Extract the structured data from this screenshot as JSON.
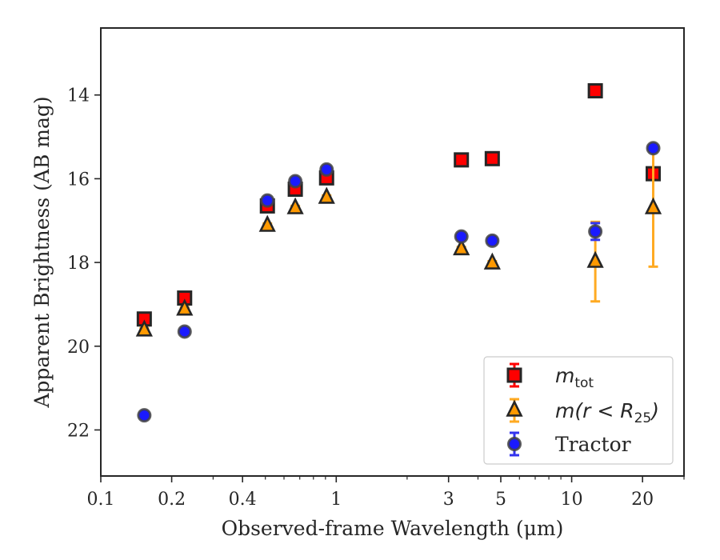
{
  "chart_data": {
    "type": "scatter",
    "title": "",
    "xlabel": "Observed-frame Wavelength (μm)",
    "ylabel": "Apparent Brightness (AB mag)",
    "x_scale": "log",
    "xlim": [
      0.1,
      30
    ],
    "ylim": [
      23.1,
      12.4
    ],
    "y_inverted": true,
    "x_ticks": [
      {
        "value": 0.1,
        "label": "0.1"
      },
      {
        "value": 0.2,
        "label": "0.2"
      },
      {
        "value": 0.4,
        "label": "0.4"
      },
      {
        "value": 1,
        "label": "1"
      },
      {
        "value": 3,
        "label": "3"
      },
      {
        "value": 5,
        "label": "5"
      },
      {
        "value": 10,
        "label": "10"
      },
      {
        "value": 20,
        "label": "20"
      }
    ],
    "y_ticks": [
      {
        "value": 14,
        "label": "14"
      },
      {
        "value": 16,
        "label": "16"
      },
      {
        "value": 18,
        "label": "18"
      },
      {
        "value": 20,
        "label": "20"
      },
      {
        "value": 22,
        "label": "22"
      }
    ],
    "legend_position": "lower-right",
    "series": [
      {
        "legend_label": "m_tot",
        "marker": "square",
        "color": "#ff0000",
        "errorbar_color": "#ff0000",
        "points": [
          {
            "x": 0.153,
            "y": 19.35,
            "err": 0.05
          },
          {
            "x": 0.227,
            "y": 18.85,
            "err": 0.05
          },
          {
            "x": 0.51,
            "y": 16.65,
            "err": 0.05
          },
          {
            "x": 0.67,
            "y": 16.25,
            "err": 0.05
          },
          {
            "x": 0.91,
            "y": 15.98,
            "err": 0.05
          },
          {
            "x": 3.4,
            "y": 15.55,
            "err": 0.05
          },
          {
            "x": 4.6,
            "y": 15.52,
            "err": 0.05
          },
          {
            "x": 12.6,
            "y": 13.9,
            "err": 0.05
          },
          {
            "x": 22.2,
            "y": 15.88,
            "err": 0.05
          }
        ]
      },
      {
        "legend_label": "m(r < R_25)",
        "marker": "triangle",
        "color": "#ff9900",
        "errorbar_color": "#ffaa22",
        "points": [
          {
            "x": 0.153,
            "y": 19.62,
            "err": 0.05
          },
          {
            "x": 0.227,
            "y": 19.12,
            "err": 0.05
          },
          {
            "x": 0.51,
            "y": 17.12,
            "err": 0.05
          },
          {
            "x": 0.67,
            "y": 16.7,
            "err": 0.05
          },
          {
            "x": 0.91,
            "y": 16.45,
            "err": 0.05
          },
          {
            "x": 3.4,
            "y": 17.68,
            "err": 0.05
          },
          {
            "x": 4.6,
            "y": 18.02,
            "err": 0.05
          },
          {
            "x": 12.6,
            "y": 17.98,
            "err": 0.95
          },
          {
            "x": 22.2,
            "y": 16.7,
            "err": 1.4
          }
        ]
      },
      {
        "legend_label": "Tractor",
        "marker": "circle",
        "color": "#1a1aff",
        "errorbar_color": "#3333ee",
        "points": [
          {
            "x": 0.153,
            "y": 21.65,
            "err": 0.05
          },
          {
            "x": 0.227,
            "y": 19.65,
            "err": 0.05
          },
          {
            "x": 0.51,
            "y": 16.52,
            "err": 0.05
          },
          {
            "x": 0.67,
            "y": 16.06,
            "err": 0.05
          },
          {
            "x": 0.91,
            "y": 15.78,
            "err": 0.05
          },
          {
            "x": 3.4,
            "y": 17.38,
            "err": 0.05
          },
          {
            "x": 4.6,
            "y": 17.48,
            "err": 0.05
          },
          {
            "x": 12.6,
            "y": 17.26,
            "err": 0.2
          },
          {
            "x": 22.2,
            "y": 15.27,
            "err": 0.05
          }
        ]
      }
    ]
  }
}
